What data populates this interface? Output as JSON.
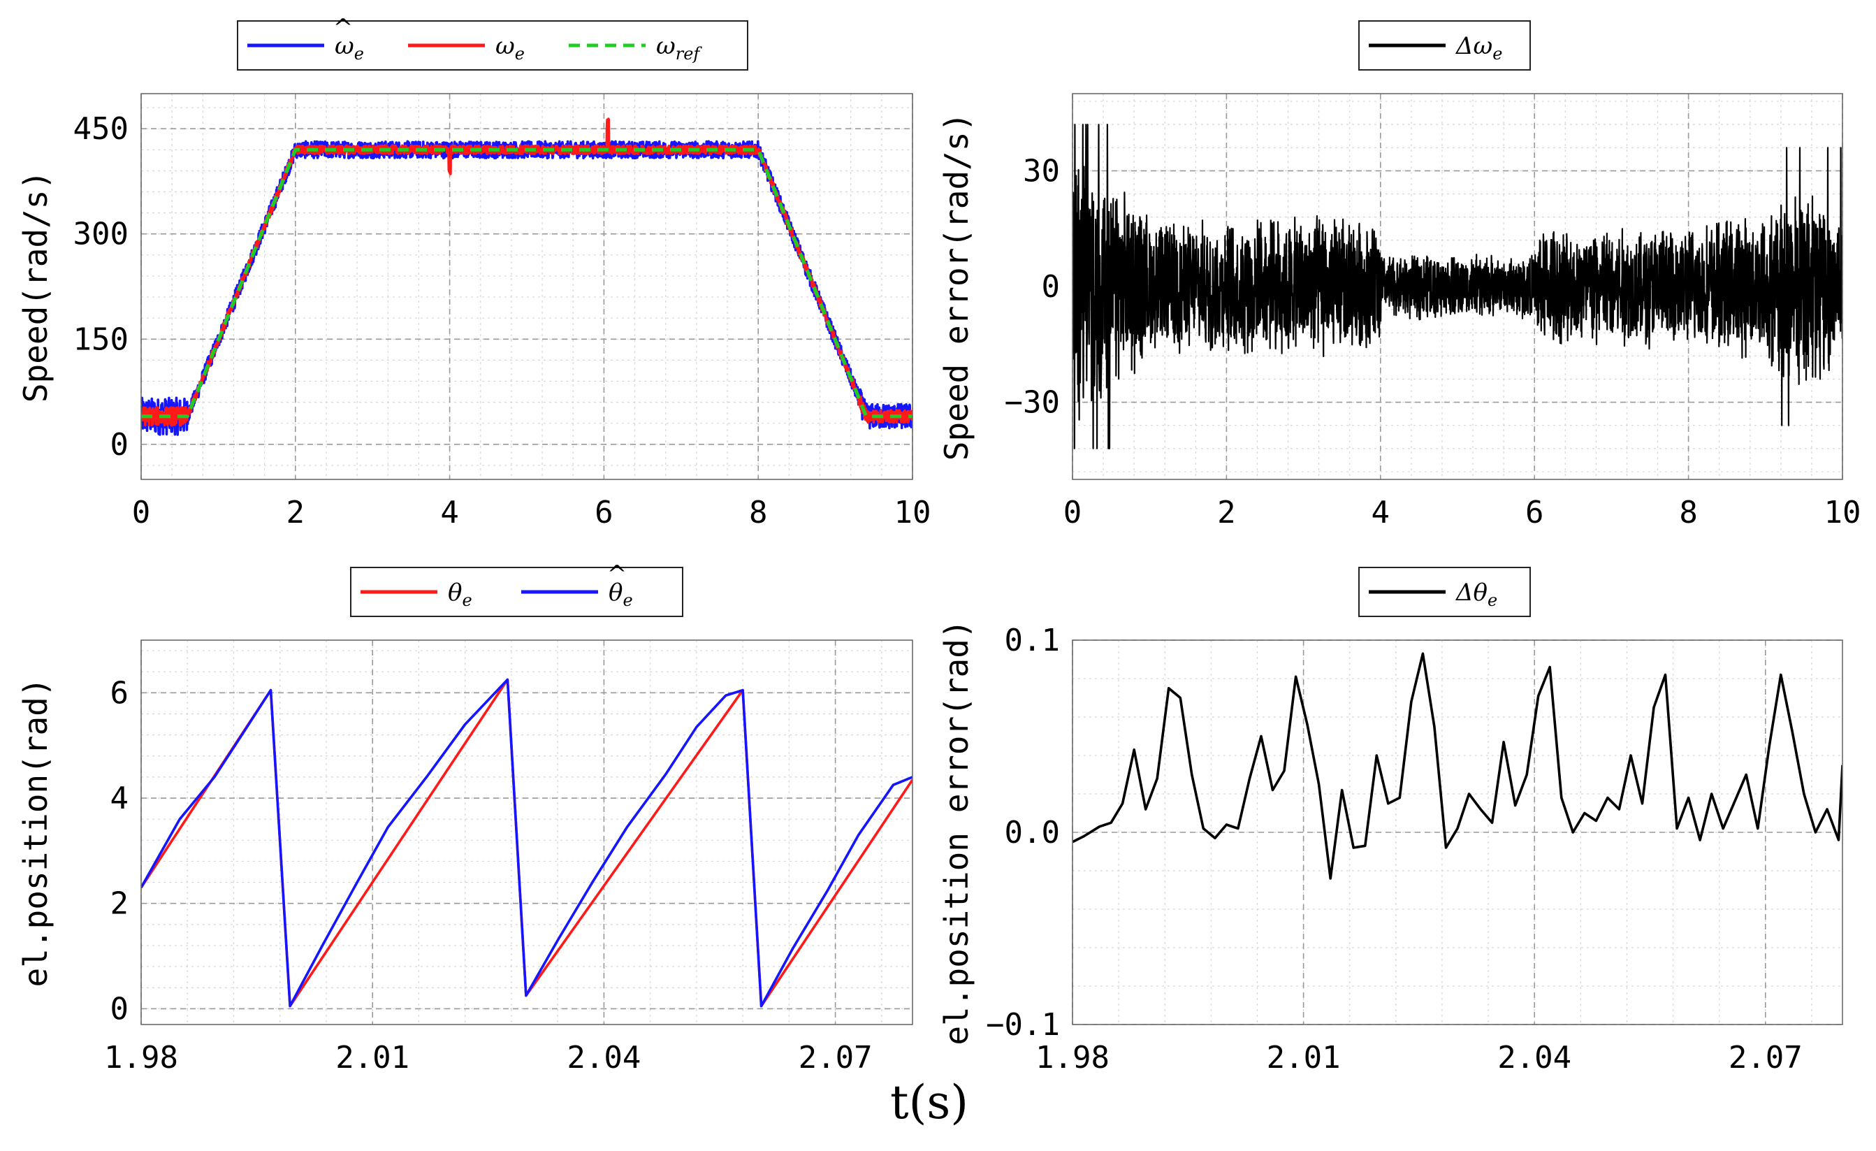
{
  "shared_xlabel": "t(s)",
  "colors": {
    "blue": "#1515ff",
    "red": "#ff1a1a",
    "green": "#22cc22",
    "black": "#000000"
  },
  "chart_data": [
    {
      "id": "speed",
      "type": "line",
      "ylabel": "Speed(rad/s)",
      "xlim": [
        0,
        10
      ],
      "ylim": [
        -50,
        500
      ],
      "xticks": [
        0,
        2,
        4,
        6,
        8,
        10
      ],
      "xtick_labels": [
        "0",
        "2",
        "4",
        "6",
        "8",
        "10"
      ],
      "yticks": [
        0,
        150,
        300,
        450
      ],
      "ytick_labels": [
        "0",
        "150",
        "300",
        "450"
      ],
      "legend": [
        {
          "base": "ω",
          "sub": "e",
          "hat": true,
          "color": "#1515ff",
          "dash": false
        },
        {
          "base": "ω",
          "sub": "e",
          "hat": false,
          "color": "#ff1a1a",
          "dash": false
        },
        {
          "base": "ω",
          "sub": "ref",
          "hat": false,
          "color": "#22cc22",
          "dash": true
        }
      ],
      "series": [
        {
          "name": "omega_e_hat",
          "color": "#1515ff",
          "profile": {
            "x": [
              0,
              0.6,
              2,
              8,
              9.4,
              10
            ],
            "y": [
              40,
              40,
              420,
              420,
              40,
              40
            ]
          },
          "noise": 12
        },
        {
          "name": "omega_e",
          "color": "#ff1a1a",
          "profile": {
            "x": [
              0,
              0.6,
              2,
              8,
              9.4,
              10
            ],
            "y": [
              40,
              40,
              420,
              420,
              40,
              40
            ]
          },
          "noise": 6,
          "spikes": [
            [
              4.0,
              -30
            ],
            [
              6.05,
              38
            ]
          ]
        },
        {
          "name": "omega_ref",
          "color": "#22cc22",
          "dash": true,
          "profile": {
            "x": [
              0,
              0.6,
              2,
              8,
              9.4,
              10
            ],
            "y": [
              40,
              40,
              420,
              420,
              40,
              40
            ]
          },
          "noise": 0
        }
      ]
    },
    {
      "id": "speed_error",
      "type": "line",
      "ylabel": "Speed error(rad/s)",
      "xlim": [
        0,
        10
      ],
      "ylim": [
        -50,
        50
      ],
      "xticks": [
        0,
        2,
        4,
        6,
        8,
        10
      ],
      "xtick_labels": [
        "0",
        "2",
        "4",
        "6",
        "8",
        "10"
      ],
      "yticks": [
        -30,
        0,
        30
      ],
      "ytick_labels": [
        "−30",
        "0",
        "30"
      ],
      "legend": [
        {
          "base": "Δω",
          "sub": "e",
          "hat": false,
          "color": "#000000",
          "dash": false
        }
      ],
      "series": [
        {
          "name": "delta_omega_e",
          "color": "#000000",
          "envelope": {
            "x": [
              0,
              0.4,
              0.9,
              1.1,
              2,
              3.5,
              3.95,
              4.05,
              6,
              6.05,
              8,
              8.8,
              9.5,
              10
            ],
            "amp": [
              34,
              28,
              20,
              16,
              16,
              18,
              16,
              8,
              8,
              15,
              15,
              18,
              26,
              20
            ]
          }
        }
      ]
    },
    {
      "id": "position",
      "type": "line",
      "ylabel": "el.position(rad)",
      "xlim": [
        1.98,
        2.08
      ],
      "ylim": [
        -0.3,
        7
      ],
      "xticks": [
        1.98,
        2.01,
        2.04,
        2.07
      ],
      "xtick_labels": [
        "1.98",
        "2.01",
        "2.04",
        "2.07"
      ],
      "yticks": [
        0,
        2,
        4,
        6
      ],
      "ytick_labels": [
        "0",
        "2",
        "4",
        "6"
      ],
      "legend": [
        {
          "base": "θ",
          "sub": "e",
          "hat": false,
          "color": "#ff1a1a",
          "dash": false
        },
        {
          "base": "θ",
          "sub": "e",
          "hat": true,
          "color": "#1515ff",
          "dash": false
        }
      ],
      "series": [
        {
          "name": "theta_e",
          "color": "#ff1a1a",
          "x": [
            1.98,
            1.9968,
            1.9993,
            2.0275,
            2.0299,
            2.058,
            2.0604,
            2.08
          ],
          "y": [
            2.3,
            6.05,
            0.05,
            6.25,
            0.25,
            6.05,
            0.05,
            4.35
          ]
        },
        {
          "name": "theta_e_hat",
          "color": "#1515ff",
          "x": [
            1.98,
            1.985,
            1.9895,
            1.9935,
            1.9968,
            1.9993,
            2.0035,
            2.008,
            2.012,
            2.017,
            2.022,
            2.0275,
            2.0299,
            2.034,
            2.0385,
            2.043,
            2.048,
            2.052,
            2.0558,
            2.058,
            2.0604,
            2.0645,
            2.069,
            2.073,
            2.0775,
            2.08
          ],
          "y": [
            2.3,
            3.6,
            4.4,
            5.3,
            6.05,
            0.05,
            1.2,
            2.4,
            3.45,
            4.4,
            5.4,
            6.25,
            0.25,
            1.3,
            2.4,
            3.45,
            4.45,
            5.35,
            5.95,
            6.05,
            0.05,
            1.15,
            2.25,
            3.3,
            4.25,
            4.4
          ]
        }
      ]
    },
    {
      "id": "position_error",
      "type": "line",
      "ylabel": "el.position error(rad)",
      "xlim": [
        1.98,
        2.08
      ],
      "ylim": [
        -0.1,
        0.1
      ],
      "xticks": [
        1.98,
        2.01,
        2.04,
        2.07
      ],
      "xtick_labels": [
        "1.98",
        "2.01",
        "2.04",
        "2.07"
      ],
      "yticks": [
        -0.1,
        0.0,
        0.1
      ],
      "ytick_labels": [
        "−0.1",
        "0.0",
        "0.1"
      ],
      "legend": [
        {
          "base": "Δθ",
          "sub": "e",
          "hat": false,
          "color": "#000000",
          "dash": false
        }
      ],
      "series": [
        {
          "name": "delta_theta_e",
          "color": "#000000",
          "x": [
            1.98,
            1.9815,
            1.9835,
            1.985,
            1.9865,
            1.988,
            1.9895,
            1.991,
            1.9925,
            1.994,
            1.9955,
            1.997,
            1.9985,
            2.0,
            2.0015,
            2.003,
            2.0045,
            2.006,
            2.0075,
            2.009,
            2.0105,
            2.012,
            2.0135,
            2.015,
            2.0165,
            2.018,
            2.0195,
            2.021,
            2.0225,
            2.024,
            2.0255,
            2.027,
            2.0285,
            2.03,
            2.0315,
            2.033,
            2.0345,
            2.036,
            2.0375,
            2.039,
            2.0405,
            2.042,
            2.0435,
            2.045,
            2.0465,
            2.048,
            2.0495,
            2.051,
            2.0525,
            2.054,
            2.0555,
            2.057,
            2.0585,
            2.06,
            2.0615,
            2.063,
            2.0645,
            2.066,
            2.0675,
            2.069,
            2.0705,
            2.072,
            2.0735,
            2.075,
            2.0765,
            2.078,
            2.0795,
            2.08
          ],
          "y": [
            -0.005,
            -0.002,
            0.003,
            0.005,
            0.015,
            0.043,
            0.012,
            0.028,
            0.075,
            0.07,
            0.03,
            0.002,
            -0.003,
            0.004,
            0.002,
            0.028,
            0.05,
            0.022,
            0.032,
            0.081,
            0.056,
            0.025,
            -0.024,
            0.022,
            -0.008,
            -0.007,
            0.04,
            0.015,
            0.018,
            0.068,
            0.093,
            0.055,
            -0.008,
            0.002,
            0.02,
            0.012,
            0.005,
            0.047,
            0.014,
            0.03,
            0.071,
            0.086,
            0.018,
            0.0,
            0.01,
            0.006,
            0.018,
            0.012,
            0.04,
            0.015,
            0.065,
            0.082,
            0.002,
            0.018,
            -0.004,
            0.02,
            0.002,
            0.016,
            0.03,
            0.002,
            0.045,
            0.082,
            0.052,
            0.02,
            0.0,
            0.012,
            -0.004,
            0.035
          ]
        }
      ]
    }
  ]
}
